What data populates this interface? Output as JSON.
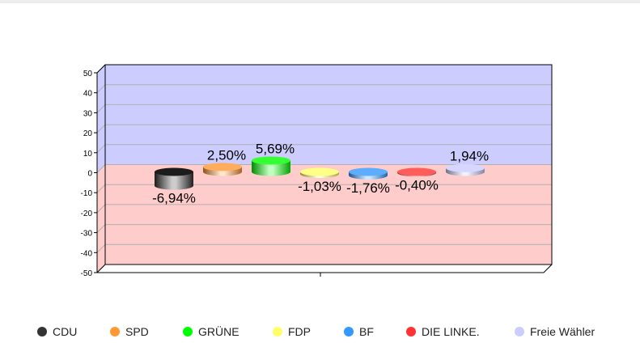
{
  "chart_data": {
    "type": "bar",
    "title": "",
    "xlabel": "",
    "ylabel": "",
    "ylim": [
      -50,
      50
    ],
    "yticks": [
      "50",
      "40",
      "30",
      "20",
      "10",
      "0",
      "-10",
      "-20",
      "-30",
      "-40",
      "-50"
    ],
    "categories": [
      "CDU",
      "SPD",
      "GRÜNE",
      "FDP",
      "BF",
      "DIE LINKE.",
      "Freie Wähler"
    ],
    "values": [
      -6.94,
      2.5,
      5.69,
      -1.03,
      -1.76,
      -0.4,
      1.94
    ],
    "data_labels": [
      "-6,94%",
      "2,50%",
      "5,69%",
      "-1,03%",
      "-1,76%",
      "-0,40%",
      "1,94%"
    ],
    "colors": [
      "#333333",
      "#ff9933",
      "#00ff00",
      "#ffff66",
      "#3399ff",
      "#ff3333",
      "#ccccff"
    ],
    "positive_background": "#ccccff",
    "negative_background": "#ffcccc",
    "legend_position": "bottom",
    "grid": true
  }
}
